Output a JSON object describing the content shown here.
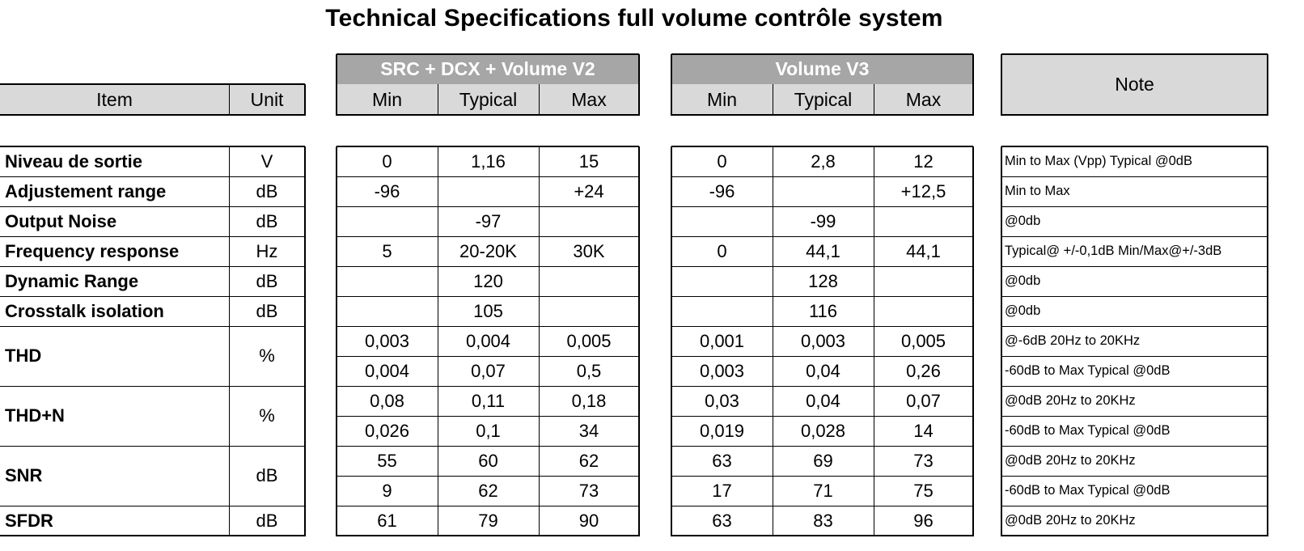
{
  "title": "Technical Specifications full volume contrôle system",
  "headers": {
    "item": "Item",
    "unit": "Unit",
    "group_a": "SRC + DCX + Volume V2",
    "group_b": "Volume V3",
    "min": "Min",
    "typical": "Typical",
    "max": "Max",
    "note": "Note"
  },
  "rows": [
    {
      "item": "Niveau de sortie",
      "unit": "V",
      "a": [
        "0",
        "1,16",
        "15"
      ],
      "b": [
        "0",
        "2,8",
        "12"
      ],
      "note": "Min to Max (Vpp) Typical @0dB"
    },
    {
      "item": "Adjustement range",
      "unit": "dB",
      "a": [
        "-96",
        "",
        "+24"
      ],
      "b": [
        "-96",
        "",
        "+12,5"
      ],
      "note": "Min to Max"
    },
    {
      "item": "Output Noise",
      "unit": "dB",
      "a": [
        "",
        "-97",
        ""
      ],
      "b": [
        "",
        "-99",
        ""
      ],
      "note": "@0db"
    },
    {
      "item": "Frequency response",
      "unit": "Hz",
      "a": [
        "5",
        "20-20K",
        "30K"
      ],
      "b": [
        "0",
        "44,1",
        "44,1"
      ],
      "note": "Typical@ +/-0,1dB   Min/Max@+/-3dB"
    },
    {
      "item": "Dynamic Range",
      "unit": "dB",
      "a": [
        "",
        "120",
        ""
      ],
      "b": [
        "",
        "128",
        ""
      ],
      "note": "@0db"
    },
    {
      "item": "Crosstalk isolation",
      "unit": "dB",
      "a": [
        "",
        "105",
        ""
      ],
      "b": [
        "",
        "116",
        ""
      ],
      "note": "@0db"
    },
    {
      "item": "THD",
      "unit": "%",
      "a": [
        "0,003",
        "0,004",
        "0,005"
      ],
      "b": [
        "0,001",
        "0,003",
        "0,005"
      ],
      "note": "@-6dB  20Hz to 20KHz"
    },
    {
      "item": "",
      "unit": "",
      "a": [
        "0,004",
        "0,07",
        "0,5"
      ],
      "b": [
        "0,003",
        "0,04",
        "0,26"
      ],
      "note": "-60dB to Max  Typical @0dB"
    },
    {
      "item": "THD+N",
      "unit": "%",
      "a": [
        "0,08",
        "0,11",
        "0,18"
      ],
      "b": [
        "0,03",
        "0,04",
        "0,07"
      ],
      "note": "@0dB 20Hz to 20KHz"
    },
    {
      "item": "",
      "unit": "",
      "a": [
        "0,026",
        "0,1",
        "34"
      ],
      "b": [
        "0,019",
        "0,028",
        "14"
      ],
      "note": "-60dB to Max  Typical @0dB"
    },
    {
      "item": "SNR",
      "unit": "dB",
      "a": [
        "55",
        "60",
        "62"
      ],
      "b": [
        "63",
        "69",
        "73"
      ],
      "note": "@0dB 20Hz to 20KHz"
    },
    {
      "item": "",
      "unit": "",
      "a": [
        "9",
        "62",
        "73"
      ],
      "b": [
        "17",
        "71",
        "75"
      ],
      "note": "-60dB to Max  Typical @0dB"
    },
    {
      "item": "SFDR",
      "unit": "dB",
      "a": [
        "61",
        "79",
        "90"
      ],
      "b": [
        "63",
        "83",
        "96"
      ],
      "note": "@0dB 20Hz to 20KHz"
    }
  ]
}
